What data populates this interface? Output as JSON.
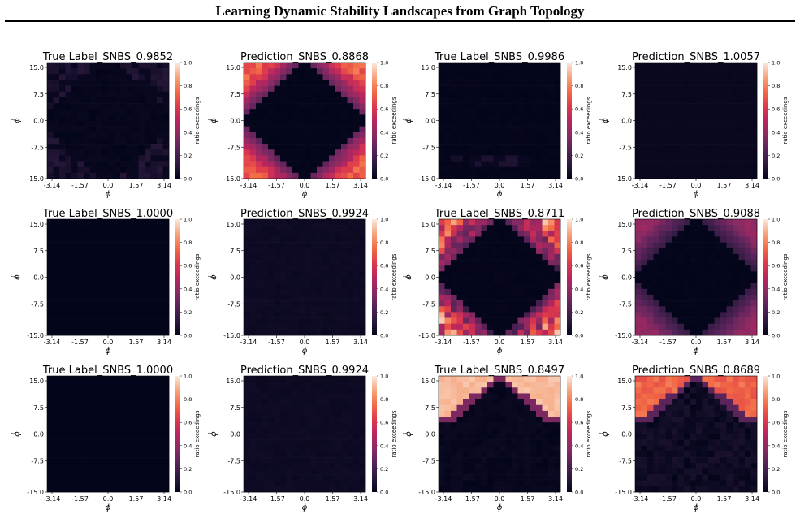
{
  "page": {
    "title": "Learning Dynamic Stability Landscapes from Graph Topology"
  },
  "colormap": {
    "name": "rocket",
    "stops": [
      "#03051a",
      "#2c1a3e",
      "#57235a",
      "#8a2a63",
      "#b8255e",
      "#de3a4c",
      "#f26b45",
      "#f6a47e",
      "#faebdd"
    ]
  },
  "chart_data": [
    {
      "type": "heatmap",
      "title": "True Label_SNBS_0.9852",
      "xlabel": "ϕ",
      "ylabel": "ϕ̇",
      "colorbar_label": "ratio exceedings",
      "pattern": "ring",
      "intensity": 0.13,
      "noise": 0.6
    },
    {
      "type": "heatmap",
      "title": "Prediction_SNBS_0.8868",
      "xlabel": "ϕ",
      "ylabel": "ϕ̇",
      "colorbar_label": "ratio exceedings",
      "pattern": "diamond",
      "intensity": 0.72,
      "noise": 0.2
    },
    {
      "type": "heatmap",
      "title": "True Label_SNBS_0.9986",
      "xlabel": "ϕ",
      "ylabel": "ϕ̇",
      "colorbar_label": "ratio exceedings",
      "pattern": "sparse",
      "intensity": 0.08,
      "noise": 0.5
    },
    {
      "type": "heatmap",
      "title": "Prediction_SNBS_1.0057",
      "xlabel": "ϕ",
      "ylabel": "ϕ̇",
      "colorbar_label": "ratio exceedings",
      "pattern": "uniform",
      "intensity": 0.02,
      "noise": 0.3
    },
    {
      "type": "heatmap",
      "title": "True Label_SNBS_1.0000",
      "xlabel": "ϕ",
      "ylabel": "ϕ̇",
      "colorbar_label": "ratio exceedings",
      "pattern": "uniform",
      "intensity": 0.0,
      "noise": 0.0
    },
    {
      "type": "heatmap",
      "title": "Prediction_SNBS_0.9924",
      "xlabel": "ϕ",
      "ylabel": "ϕ̇",
      "colorbar_label": "ratio exceedings",
      "pattern": "uniform",
      "intensity": 0.04,
      "noise": 0.4
    },
    {
      "type": "heatmap",
      "title": "True Label_SNBS_0.8711",
      "xlabel": "ϕ",
      "ylabel": "ϕ̇",
      "colorbar_label": "ratio exceedings",
      "pattern": "diamond",
      "intensity": 0.68,
      "noise": 0.85
    },
    {
      "type": "heatmap",
      "title": "Prediction_SNBS_0.9088",
      "xlabel": "ϕ",
      "ylabel": "ϕ̇",
      "colorbar_label": "ratio exceedings",
      "pattern": "diamond",
      "intensity": 0.4,
      "noise": 0.15
    },
    {
      "type": "heatmap",
      "title": "True Label_SNBS_1.0000",
      "xlabel": "ϕ",
      "ylabel": "ϕ̇",
      "colorbar_label": "ratio exceedings",
      "pattern": "uniform",
      "intensity": 0.0,
      "noise": 0.0
    },
    {
      "type": "heatmap",
      "title": "Prediction_SNBS_0.9924",
      "xlabel": "ϕ",
      "ylabel": "ϕ̇",
      "colorbar_label": "ratio exceedings",
      "pattern": "uniform",
      "intensity": 0.04,
      "noise": 0.4
    },
    {
      "type": "heatmap",
      "title": "True Label_SNBS_0.8497",
      "xlabel": "ϕ",
      "ylabel": "ϕ̇",
      "colorbar_label": "ratio exceedings",
      "pattern": "cap",
      "intensity": 0.97,
      "noise": 0.05
    },
    {
      "type": "heatmap",
      "title": "Prediction_SNBS_0.8689",
      "xlabel": "ϕ",
      "ylabel": "ϕ̇",
      "colorbar_label": "ratio exceedings",
      "pattern": "cap",
      "intensity": 0.74,
      "noise": 0.15
    }
  ],
  "axes": {
    "x_ticks": [
      "-3.14",
      "-1.57",
      "0.0",
      "1.57",
      "3.14"
    ],
    "y_ticks": [
      "15.0",
      "7.5",
      "0.0",
      "-7.5",
      "-15.0"
    ],
    "x_range": [
      -3.14,
      3.14
    ],
    "y_range": [
      -15.0,
      15.0
    ],
    "colorbar_ticks": [
      "1.0",
      "0.8",
      "0.6",
      "0.4",
      "0.2",
      "0.0"
    ],
    "grid_cells": 20
  }
}
